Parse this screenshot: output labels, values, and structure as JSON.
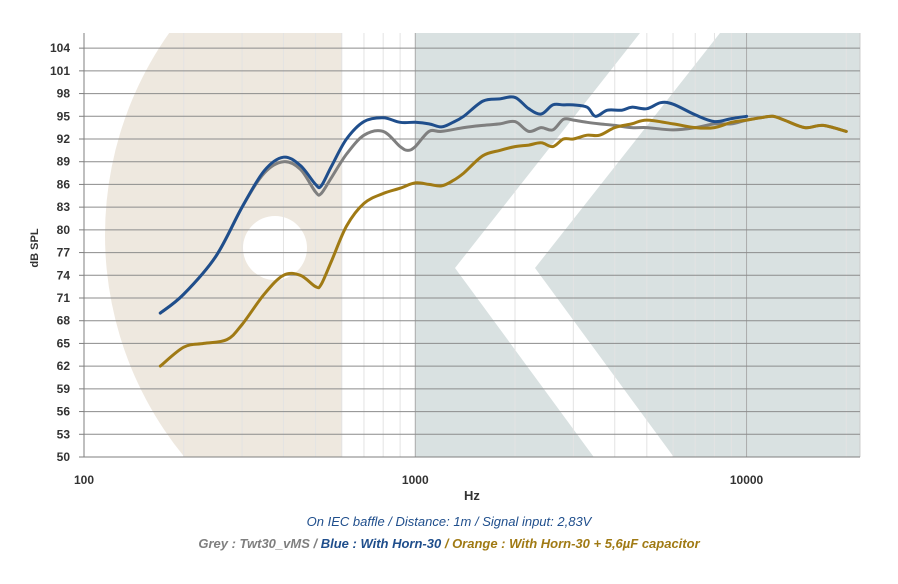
{
  "chart_data": {
    "type": "line",
    "xscale": "log",
    "xlim": [
      100,
      22000
    ],
    "ylim": [
      50,
      106
    ],
    "xlabel": "Hz",
    "ylabel": "dB SPL",
    "x_ticks": [
      100,
      1000,
      10000
    ],
    "x_tick_labels": [
      "100",
      "1000",
      "10000"
    ],
    "y_ticks": [
      50,
      53,
      56,
      59,
      62,
      65,
      68,
      71,
      74,
      77,
      80,
      83,
      86,
      89,
      92,
      95,
      98,
      101,
      104
    ],
    "grid": true,
    "series": [
      {
        "name": "Grey : Twt30_vMS",
        "color": "#7f7f7f",
        "x": [
          170,
          200,
          250,
          300,
          350,
          400,
          450,
          500,
          520,
          560,
          620,
          700,
          800,
          900,
          950,
          1000,
          1100,
          1200,
          1400,
          1600,
          1800,
          2000,
          2200,
          2400,
          2600,
          2800,
          3000,
          3300,
          3600,
          4000,
          4500,
          5000,
          6000,
          7000,
          8000,
          9000,
          10000,
          11000,
          12000,
          13000,
          15000,
          17000,
          20000
        ],
        "y": [
          69,
          71.5,
          76.5,
          83,
          87.5,
          89,
          88,
          85,
          84.8,
          87,
          90,
          92.5,
          93,
          91,
          90.5,
          91,
          93,
          93,
          93.5,
          93.8,
          94,
          94.3,
          93,
          93.5,
          93.2,
          94.6,
          94.5,
          94.2,
          94,
          93.8,
          93.5,
          93.5,
          93.2,
          93.5,
          94,
          94,
          94.5,
          94.8,
          95,
          94.5,
          93.5,
          93.8,
          93
        ]
      },
      {
        "name": "Blue : With Horn-30",
        "color": "#1f4e8c",
        "x": [
          170,
          200,
          250,
          300,
          350,
          400,
          450,
          500,
          520,
          560,
          620,
          700,
          800,
          900,
          1000,
          1100,
          1200,
          1300,
          1400,
          1600,
          1800,
          2000,
          2200,
          2400,
          2600,
          2800,
          3000,
          3300,
          3500,
          3800,
          4200,
          4500,
          5000,
          5500,
          6000,
          7000,
          8000,
          9000,
          10000
        ],
        "y": [
          69,
          71.5,
          76.5,
          83,
          87.8,
          89.6,
          88.5,
          86,
          85.8,
          88.5,
          92,
          94.3,
          94.8,
          94.2,
          94.2,
          94,
          93.6,
          94.2,
          95,
          97,
          97.3,
          97.5,
          96,
          95.3,
          96.5,
          96.5,
          96.5,
          96.2,
          95,
          95.8,
          95.8,
          96.2,
          96,
          96.8,
          96.6,
          95.2,
          94.3,
          94.7,
          95
        ]
      },
      {
        "name": "Orange : With Horn-30 + 5,6µF capacitor",
        "color": "#a07a14",
        "x": [
          170,
          200,
          230,
          270,
          300,
          350,
          400,
          450,
          500,
          520,
          560,
          620,
          700,
          800,
          900,
          1000,
          1100,
          1200,
          1300,
          1400,
          1600,
          1800,
          2000,
          2200,
          2400,
          2600,
          2800,
          3000,
          3300,
          3600,
          4000,
          4500,
          5000,
          6000,
          7000,
          8000,
          9000,
          10000,
          11000,
          12000,
          13000,
          15000,
          17000,
          20000
        ],
        "y": [
          62,
          64.5,
          65,
          65.5,
          67.5,
          71.5,
          74,
          74,
          72.5,
          72.8,
          76,
          80.5,
          83.5,
          84.8,
          85.5,
          86.2,
          86,
          85.8,
          86.5,
          87.5,
          89.8,
          90.5,
          91,
          91.2,
          91.5,
          91,
          92,
          92,
          92.5,
          92.5,
          93.5,
          94,
          94.5,
          94,
          93.5,
          93.5,
          94.2,
          94.5,
          94.8,
          95,
          94.5,
          93.5,
          93.8,
          93
        ]
      }
    ],
    "captions": {
      "line1": "On IEC baffle / Distance: 1m / Signal input: 2,83V",
      "line2_grey": "Grey : Twt30_vMS",
      "sep": " / ",
      "line2_blue": "Blue : With Horn-30",
      "line2_orange": "Orange : With Horn-30 + 5,6µF capacitor"
    },
    "watermark": {
      "colors": {
        "beige": "#eee8df",
        "teal": "#d9e1e1"
      }
    }
  }
}
